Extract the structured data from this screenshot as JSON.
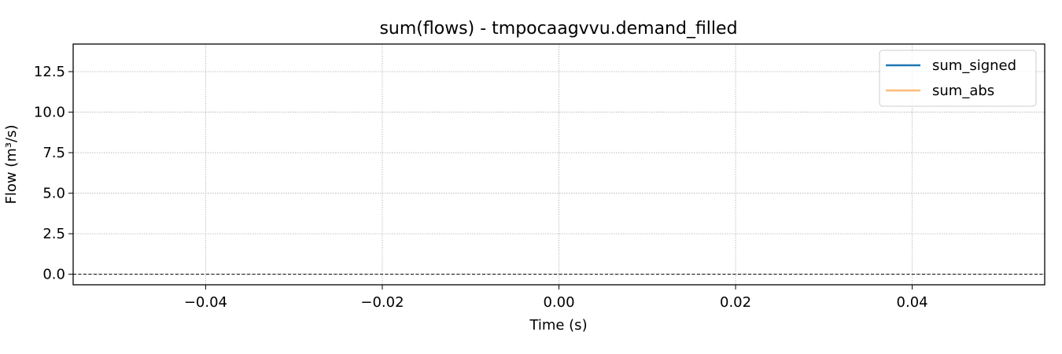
{
  "chart_data": {
    "type": "line",
    "title": "sum(flows) - tmpocaagvvu.demand_filled",
    "xlabel": "Time (s)",
    "ylabel": "Flow (m³/s)",
    "xlim": [
      -0.055,
      0.055
    ],
    "ylim": [
      -0.65,
      14.2
    ],
    "x_ticks": [
      -0.04,
      -0.02,
      0.0,
      0.02,
      0.04
    ],
    "x_tick_labels": [
      "−0.04",
      "−0.02",
      "0.00",
      "0.02",
      "0.04"
    ],
    "y_ticks": [
      0.0,
      2.5,
      5.0,
      7.5,
      10.0,
      12.5
    ],
    "y_tick_labels": [
      "0.0",
      "2.5",
      "5.0",
      "7.5",
      "10.0",
      "12.5"
    ],
    "grid": true,
    "legend_position": "top-right",
    "reference_line": {
      "y": 0,
      "style": "dashed",
      "color": "#000000"
    },
    "series": [
      {
        "name": "sum_signed",
        "color": "#1f77b4",
        "x": [],
        "y": []
      },
      {
        "name": "sum_abs",
        "color": "#ffbb78",
        "x": [],
        "y": []
      }
    ]
  }
}
